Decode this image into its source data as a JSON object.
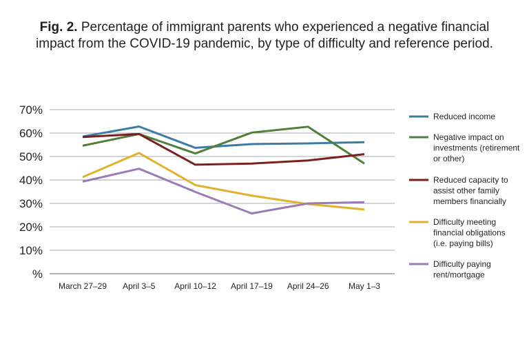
{
  "title": {
    "prefix": "Fig. 2.",
    "text_line1": "Percentage of immigrant parents who experienced a negative financial",
    "text_line2": "impact from the COVID-19 pandemic, by type of difficulty and reference period."
  },
  "chart_data": {
    "type": "line",
    "title": "Fig. 2. Percentage of immigrant parents who experienced a negative financial impact from the COVID-19 pandemic, by type of difficulty and reference period.",
    "categories": [
      "March 27–29",
      "April 3–5",
      "April 10–12",
      "April 17–19",
      "April 24–26",
      "May 1–3"
    ],
    "ylim": [
      0,
      70
    ],
    "yticks": [
      0,
      10,
      20,
      30,
      40,
      50,
      60,
      70
    ],
    "ytick_labels": [
      "%",
      "10%",
      "20%",
      "30%",
      "40%",
      "50%",
      "60%",
      "70%"
    ],
    "grid": true,
    "legend_position": "right",
    "series": [
      {
        "name": "Reduced income",
        "legend_lines": [
          "Reduced income"
        ],
        "color": "#3a7ca5",
        "values": [
          58.5,
          62.8,
          53.7,
          55.3,
          55.6,
          56.1
        ]
      },
      {
        "name": "Negative impact on investments (retirement or other)",
        "legend_lines": [
          "Negative impact on",
          "investments (retirement",
          "or other)"
        ],
        "color": "#4f7f3a",
        "values": [
          54.6,
          59.6,
          51.3,
          60.2,
          62.7,
          47.0
        ]
      },
      {
        "name": "Reduced capacity to assist other family members financially",
        "legend_lines": [
          "Reduced capacity to",
          "assist other family",
          "members financially"
        ],
        "color": "#7b1f1f",
        "values": [
          58.3,
          59.6,
          46.5,
          47.0,
          48.3,
          51.0
        ]
      },
      {
        "name": "Difficulty meeting financial obligations (i.e. paying bills)",
        "legend_lines": [
          "Difficulty meeting",
          "financial obligations",
          "(i.e. paying bills)"
        ],
        "color": "#e1b12c",
        "values": [
          41.2,
          51.5,
          37.8,
          33.3,
          29.7,
          27.4
        ]
      },
      {
        "name": "Difficulty paying rent/mortgage",
        "legend_lines": [
          "Difficulty paying",
          "rent/mortgage"
        ],
        "color": "#9b7bb5",
        "values": [
          39.3,
          44.8,
          34.9,
          25.7,
          30.0,
          30.5
        ]
      }
    ]
  }
}
